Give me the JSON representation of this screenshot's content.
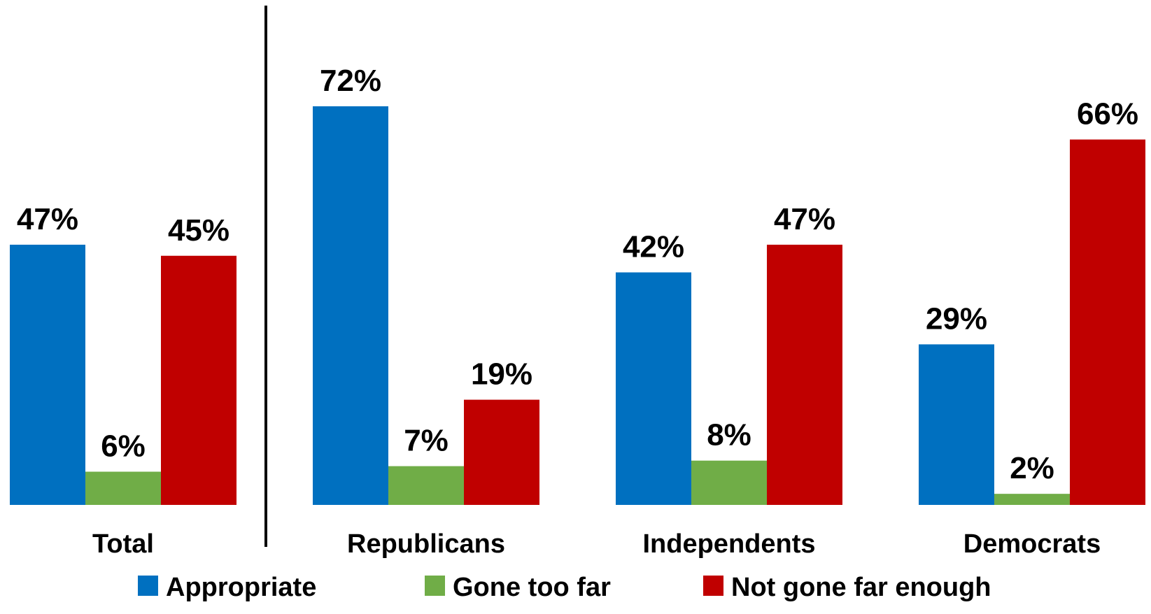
{
  "chart_data": {
    "type": "bar",
    "categories": [
      "Total",
      "Republicans",
      "Independents",
      "Democrats"
    ],
    "series": [
      {
        "name": "Appropriate",
        "color": "#0070C0",
        "values": [
          47,
          72,
          42,
          29
        ]
      },
      {
        "name": "Gone too far",
        "color": "#70AD47",
        "values": [
          6,
          7,
          8,
          2
        ]
      },
      {
        "name": "Not gone far enough",
        "color": "#C00000",
        "values": [
          45,
          19,
          47,
          66
        ]
      }
    ],
    "value_suffix": "%",
    "ylim": [
      0,
      72
    ],
    "legend_position": "bottom",
    "grid": false,
    "separator_after_category": "Total",
    "title": "",
    "xlabel": "",
    "ylabel": ""
  }
}
